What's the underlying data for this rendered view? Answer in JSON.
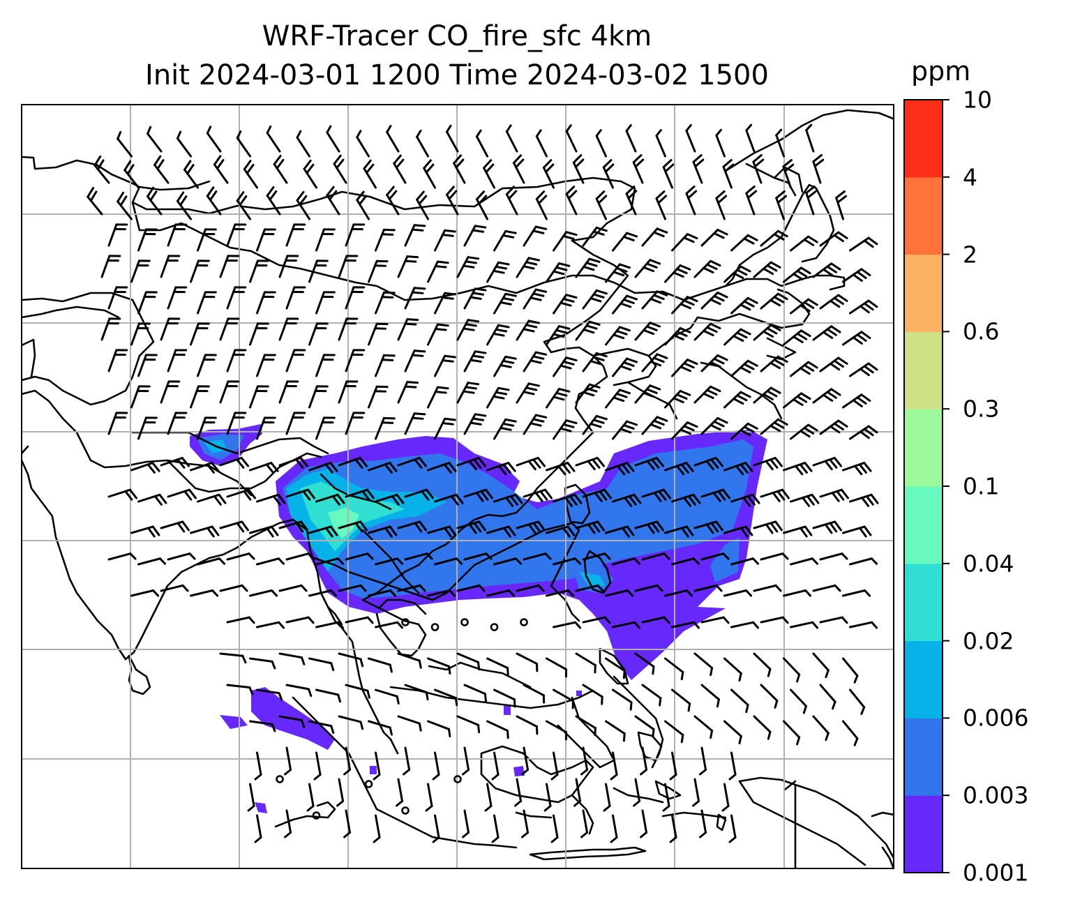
{
  "title": {
    "line1": "WRF-Tracer CO_fire_sfc 4km",
    "line2": "Init 2024-03-01 1200 Time 2024-03-02 1500"
  },
  "colorbar": {
    "unit": "ppm",
    "levels": [
      "0.001",
      "0.003",
      "0.006",
      "0.02",
      "0.04",
      "0.1",
      "0.3",
      "0.6",
      "2",
      "4",
      "10"
    ],
    "colors": [
      "#6629fa",
      "#3176ed",
      "#06b2e8",
      "#30dfd2",
      "#67f9c0",
      "#9cf99a",
      "#cfe187",
      "#fbb263",
      "#ff7239",
      "#fd2e18"
    ]
  },
  "map": {
    "gridline_color": "#b0b0b0",
    "coastline_color": "#000000",
    "wind_barb_color": "#000000",
    "plume_colors": {
      "level1": "#6629fa",
      "level2": "#3176ed",
      "level3": "#06b2e8",
      "level4": "#30dfd2",
      "level5": "#67f9c0"
    }
  }
}
